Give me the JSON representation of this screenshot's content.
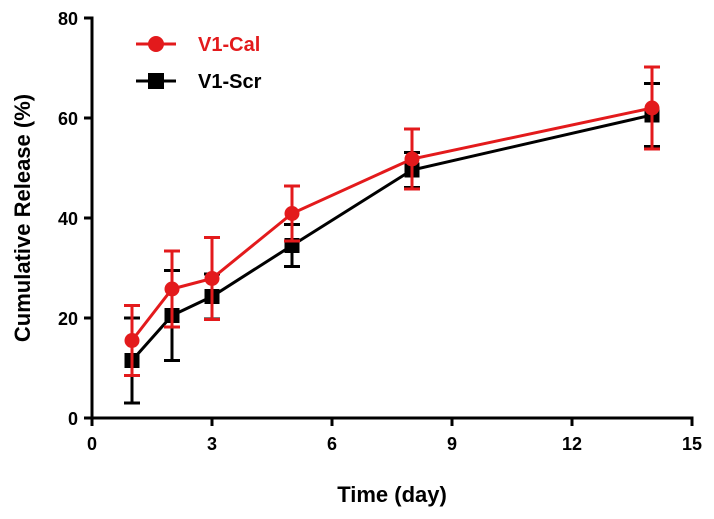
{
  "chart_data": {
    "type": "line",
    "xlabel": "Time (day)",
    "ylabel": "Cumulative Release (%)",
    "xlim": [
      0,
      15
    ],
    "ylim": [
      0,
      80
    ],
    "xticks": [
      0,
      3,
      6,
      9,
      12,
      15
    ],
    "yticks": [
      0,
      20,
      40,
      60,
      80
    ],
    "grid": false,
    "legend_position": "top-left",
    "series": [
      {
        "name": "V1-Cal",
        "color": "#e31a1c",
        "marker": "circle",
        "x": [
          1,
          2,
          3,
          5,
          8,
          14
        ],
        "y": [
          15.5,
          25.8,
          27.9,
          40.9,
          51.8,
          62.0
        ],
        "error": [
          7.0,
          7.6,
          8.2,
          5.5,
          6.0,
          8.2
        ]
      },
      {
        "name": "V1-Scr",
        "color": "#000000",
        "marker": "square",
        "x": [
          1,
          2,
          3,
          5,
          8,
          14
        ],
        "y": [
          11.5,
          20.5,
          24.3,
          34.5,
          49.6,
          60.6
        ],
        "error": [
          8.5,
          9.0,
          4.5,
          4.2,
          3.5,
          6.3
        ]
      }
    ]
  }
}
